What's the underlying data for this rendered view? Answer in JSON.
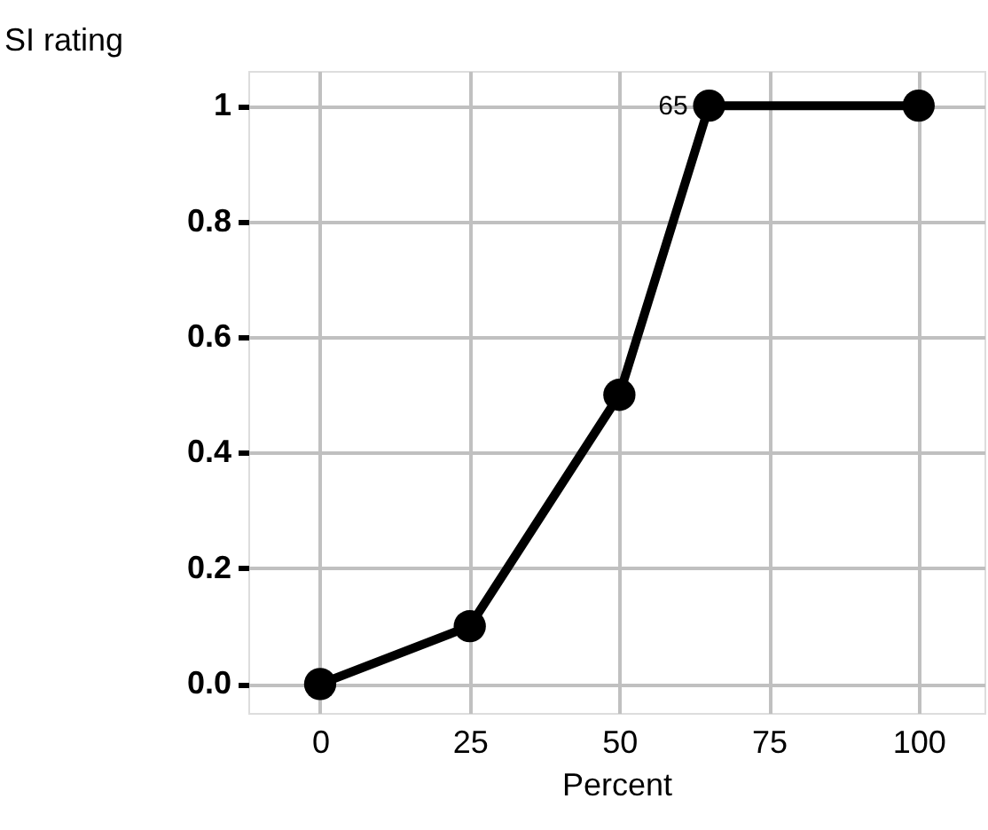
{
  "chart_data": {
    "type": "line",
    "xlabel": "Percent",
    "ylabel": "SI rating",
    "x": [
      0,
      25,
      50,
      65,
      100
    ],
    "series": [
      {
        "color": "#000000",
        "values": [
          0,
          0.1,
          0.5,
          1,
          1
        ]
      }
    ],
    "xlim": [
      -12,
      111
    ],
    "ylim": [
      -0.05,
      1.06
    ],
    "xticks": [
      0,
      25,
      50,
      75,
      100
    ],
    "yticks": [
      {
        "value": 0,
        "label": "0.0"
      },
      0.2,
      0.4,
      0.6,
      0.8,
      1
    ],
    "annotations": [
      {
        "text": "65",
        "x": 65,
        "y": 1
      }
    ],
    "grid": true,
    "marker": "circle",
    "line_style": "solid"
  }
}
